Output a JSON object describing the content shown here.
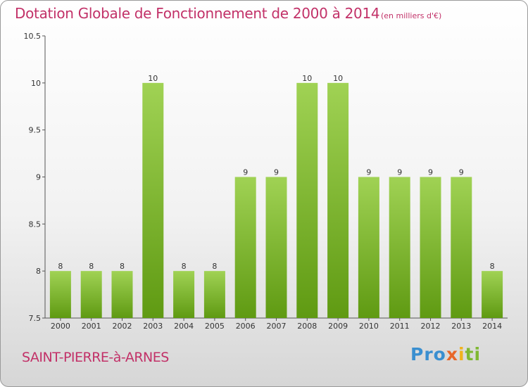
{
  "chart_data": {
    "type": "bar",
    "title": "Dotation Globale de Fonctionnement de 2000 à 2014",
    "subtitle": "(en milliers d'€)",
    "categories": [
      "2000",
      "2001",
      "2002",
      "2003",
      "2004",
      "2005",
      "2006",
      "2007",
      "2008",
      "2009",
      "2010",
      "2011",
      "2012",
      "2013",
      "2014"
    ],
    "values": [
      8,
      8,
      8,
      10,
      8,
      8,
      9,
      9,
      10,
      10,
      9,
      9,
      9,
      9,
      8
    ],
    "ylim": [
      7.5,
      10.5
    ],
    "yticks": [
      7.5,
      8,
      8.5,
      9,
      9.5,
      10,
      10.5
    ],
    "ytick_labels": [
      "7.5",
      "8",
      "8.5",
      "9",
      "9.5",
      "10",
      "10.5"
    ],
    "xlabel": "",
    "ylabel": "",
    "grid": false,
    "bar_color_top": "#a0d254",
    "bar_color_bottom": "#5f9a12"
  },
  "commune": "SAINT-PIERRE-à-ARNES",
  "logo": {
    "part1": "Pro",
    "part2": "x",
    "part3": "i",
    "part4": "ti"
  }
}
